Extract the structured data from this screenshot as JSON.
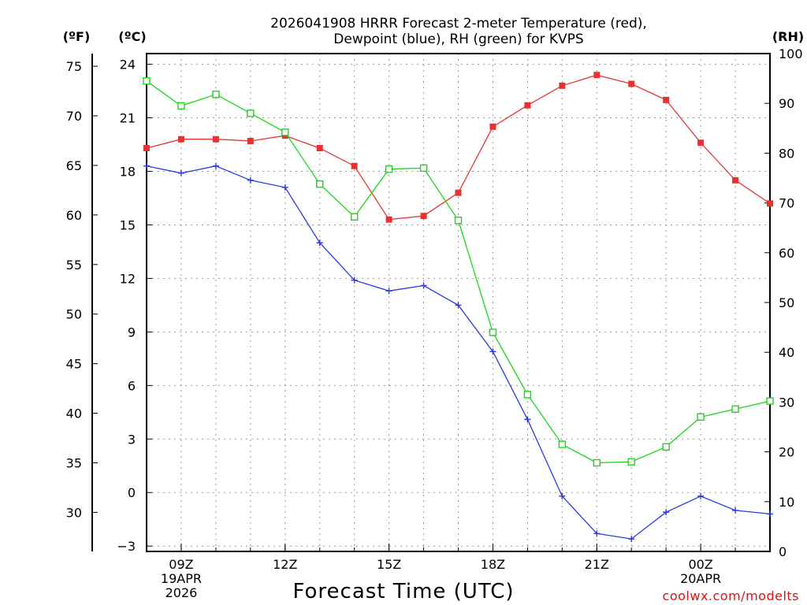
{
  "chart_data": {
    "type": "line",
    "title_lines": [
      "2026041908 HRRR Forecast 2-meter Temperature (red),",
      "Dewpoint (blue), RH (green) for KVPS"
    ],
    "xlabel": "Forecast Time (UTC)",
    "credit": "coolwx.com/modelts",
    "unit_labels": {
      "f": "(ºF)",
      "c": "(ºC)",
      "rh": "(RH)"
    },
    "x_hours": [
      8,
      9,
      10,
      11,
      12,
      13,
      14,
      15,
      16,
      17,
      18,
      19,
      20,
      21,
      22,
      23,
      24,
      25,
      26
    ],
    "x_ticks": [
      {
        "hour": 9,
        "lines": [
          "09Z",
          "19APR",
          "2026"
        ]
      },
      {
        "hour": 12,
        "lines": [
          "12Z"
        ]
      },
      {
        "hour": 15,
        "lines": [
          "15Z"
        ]
      },
      {
        "hour": 18,
        "lines": [
          "18Z"
        ]
      },
      {
        "hour": 21,
        "lines": [
          "21Z"
        ]
      },
      {
        "hour": 24,
        "lines": [
          "00Z",
          "20APR"
        ]
      }
    ],
    "c_axis": {
      "range": [
        -3.3,
        24.6
      ],
      "ticks": [
        -3,
        0,
        3,
        6,
        9,
        12,
        15,
        18,
        21,
        24
      ],
      "labels": [
        "−3",
        "0",
        "3",
        "6",
        "9",
        "12",
        "15",
        "18",
        "21",
        "24"
      ]
    },
    "f_axis": {
      "range": [
        26.06,
        76.28
      ],
      "ticks": [
        30,
        35,
        40,
        45,
        50,
        55,
        60,
        65,
        70,
        75
      ]
    },
    "rh_axis": {
      "range": [
        0,
        100
      ],
      "ticks": [
        0,
        10,
        20,
        30,
        40,
        50,
        60,
        70,
        80,
        90,
        100
      ]
    },
    "grid": true,
    "series": [
      {
        "name": "Temperature (C)",
        "color": "#e83232",
        "marker": "filled-square",
        "axis": "c",
        "values": [
          19.3,
          19.8,
          19.8,
          19.7,
          20.0,
          19.3,
          18.3,
          15.3,
          15.5,
          16.8,
          20.5,
          21.7,
          22.8,
          23.4,
          22.9,
          22.0,
          19.6,
          17.5,
          16.2
        ]
      },
      {
        "name": "Dewpoint (C)",
        "color": "#2838e8",
        "marker": "plus",
        "axis": "c",
        "values": [
          18.3,
          17.9,
          18.3,
          17.5,
          17.1,
          14.0,
          11.9,
          11.3,
          11.6,
          10.5,
          7.9,
          4.1,
          -0.2,
          -2.3,
          -2.6,
          -1.1,
          -0.2,
          -1.0,
          -1.2
        ]
      },
      {
        "name": "RH (%)",
        "color": "#18d818",
        "marker": "open-square",
        "axis": "rh",
        "values": [
          94.5,
          89.5,
          91.8,
          88.0,
          84.2,
          73.8,
          67.2,
          76.8,
          77.0,
          66.5,
          44.0,
          31.5,
          21.5,
          17.8,
          18.0,
          21.0,
          27.0,
          28.6,
          30.2
        ]
      }
    ]
  }
}
